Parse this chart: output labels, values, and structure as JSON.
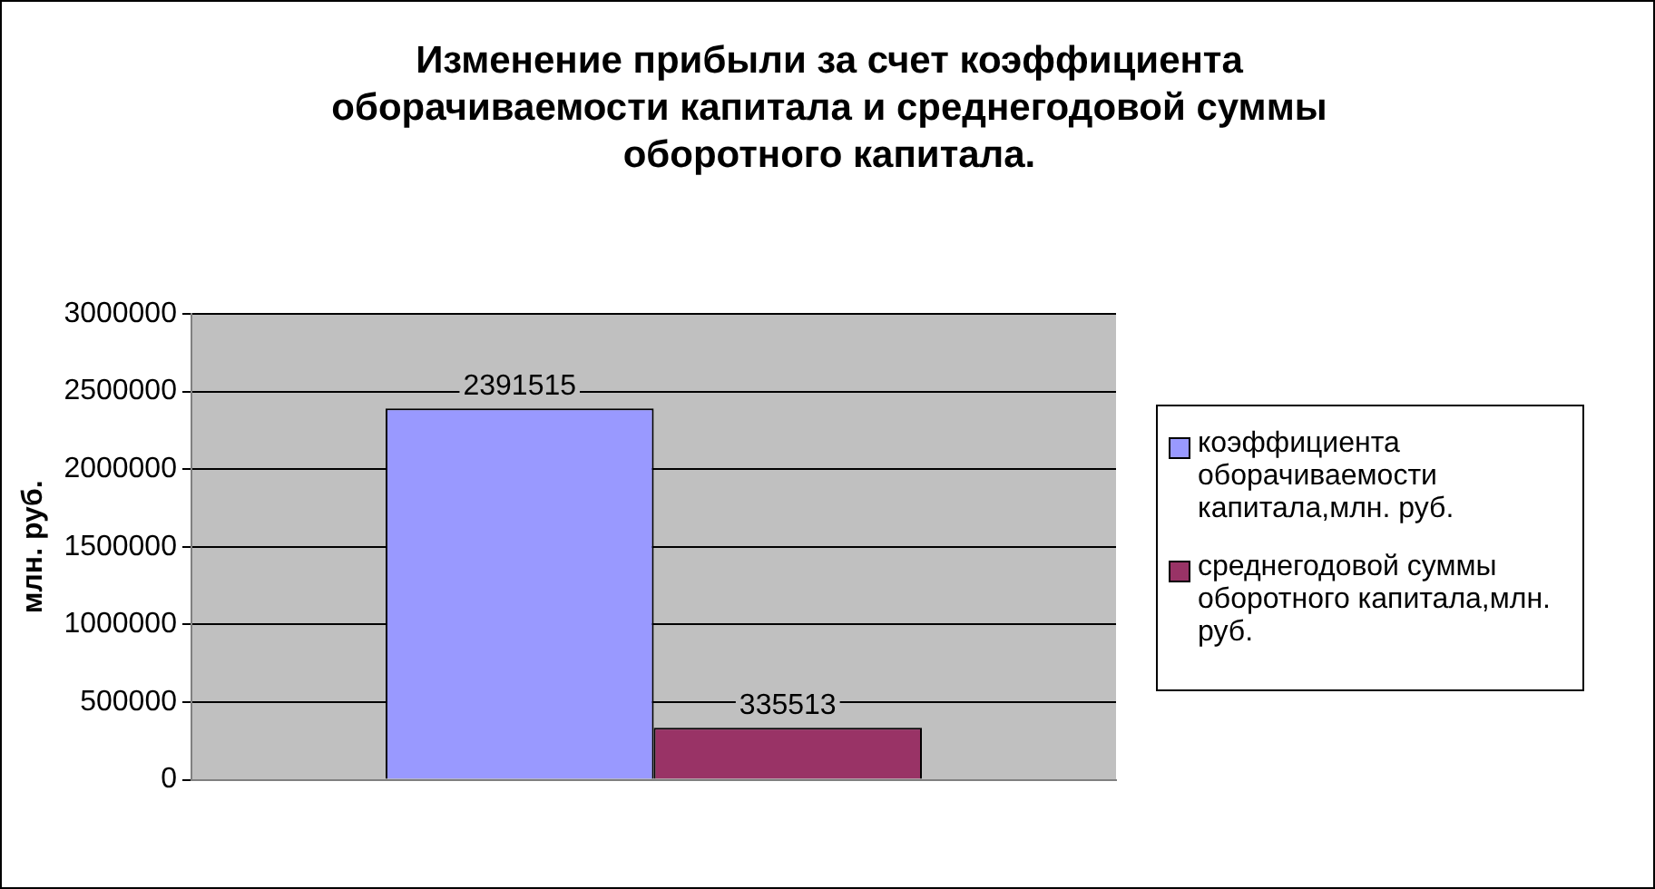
{
  "chart_data": {
    "type": "bar",
    "title": "Изменение прибыли за счет коэффициента оборачиваемости капитала и среднегодовой суммы оборотного капитала.",
    "ylabel": "млн. руб.",
    "categories": [
      null
    ],
    "series": [
      {
        "name": "коэффициента оборачиваемости капитала,млн. руб.",
        "color": "#9999ff",
        "values": [
          2391515
        ]
      },
      {
        "name": "среднегодовой суммы оборотного капитала,млн. руб.",
        "color": "#993366",
        "values": [
          335513
        ]
      }
    ],
    "ylim": [
      0,
      3000000
    ],
    "yticks": [
      0,
      500000,
      1000000,
      1500000,
      2000000,
      2500000,
      3000000
    ],
    "grid": "y",
    "legend": "right",
    "data_labels": true
  }
}
